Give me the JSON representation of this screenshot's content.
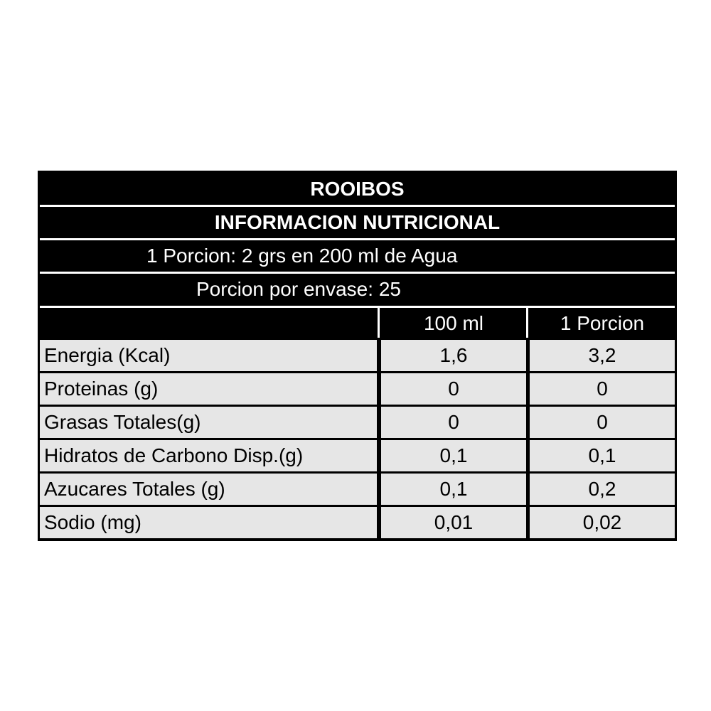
{
  "label": {
    "product": "ROOIBOS",
    "title": "INFORMACION NUTRICIONAL",
    "serving": "1 Porcion: 2 grs en 200 ml de Agua",
    "servings_per_container": "Porcion por envase: 25",
    "columns": [
      "",
      "100 ml",
      "1 Porcion"
    ],
    "rows": [
      {
        "name": "Energia (Kcal)",
        "per100": "1,6",
        "perServing": "3,2"
      },
      {
        "name": "Proteinas (g)",
        "per100": "0",
        "perServing": "0"
      },
      {
        "name": "Grasas Totales(g)",
        "per100": "0",
        "perServing": "0"
      },
      {
        "name": "Hidratos de Carbono Disp.(g)",
        "per100": "0,1",
        "perServing": "0,1"
      },
      {
        "name": "Azucares Totales (g)",
        "per100": "0,1",
        "perServing": "0,2"
      },
      {
        "name": "Sodio (mg)",
        "per100": "0,01",
        "perServing": "0,02"
      }
    ]
  },
  "colors": {
    "header_bg": "#000000",
    "row_bg": "#e6e6e6",
    "header_text": "#ffffff"
  }
}
